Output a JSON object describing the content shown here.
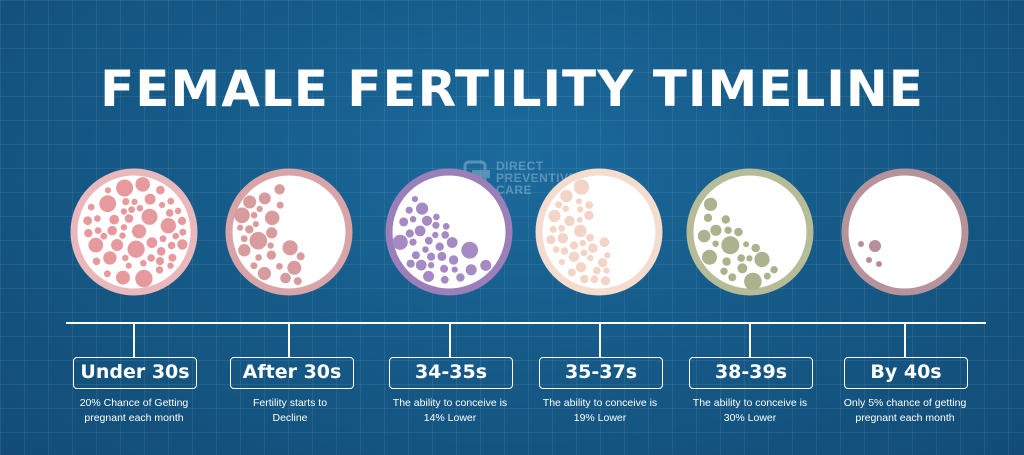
{
  "title": "FEMALE FERTILITY TIMELINE",
  "watermark": {
    "line1": "DIRECT",
    "line2": "PREVENTIVE",
    "line3": "CARE"
  },
  "colors": {
    "background": "#165b89",
    "stage_colors": [
      "#e79a9e",
      "#d99c9e",
      "#a68ac4",
      "#f3d5c8",
      "#aab38e",
      "#b88e99"
    ],
    "ring_colors": [
      "#e9b8bc",
      "#d8a4a8",
      "#9b7fb9",
      "#f4dccf",
      "#b6bb98",
      "#b4939b"
    ],
    "fill_levels": [
      1.0,
      0.8,
      0.86,
      0.81,
      0.7,
      0.05
    ]
  },
  "stages": [
    {
      "label": "Under 30s",
      "desc_line1": "20% Chance of Getting",
      "desc_line2": "pregnant each month"
    },
    {
      "label": "After 30s",
      "desc_line1": "Fertility starts to",
      "desc_line2": "Decline"
    },
    {
      "label": "34-35s",
      "desc_line1": "The ability to conceive is",
      "desc_line2": "14% Lower"
    },
    {
      "label": "35-37s",
      "desc_line1": "The ability to conceive is",
      "desc_line2": "19% Lower"
    },
    {
      "label": "38-39s",
      "desc_line1": "The ability to conceive is",
      "desc_line2": "30% Lower"
    },
    {
      "label": "By 40s",
      "desc_line1": "Only 5% chance of getting",
      "desc_line2": "pregnant each month"
    }
  ]
}
